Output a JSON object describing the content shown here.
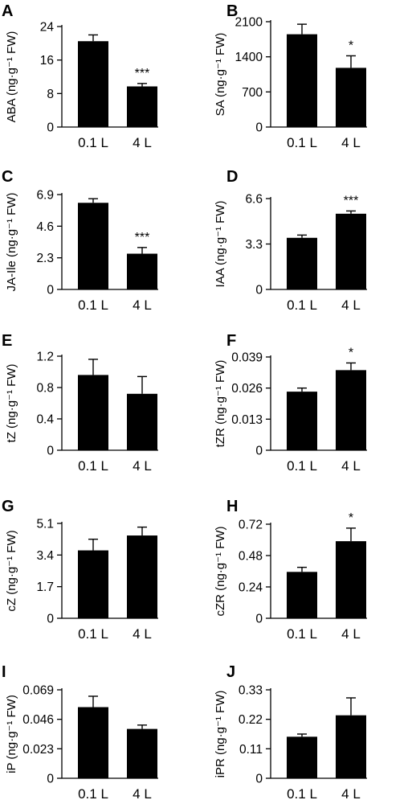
{
  "chart_data": [
    {
      "panel": "A",
      "type": "bar",
      "categories": [
        "0.1 L",
        "4 L"
      ],
      "values": [
        20.5,
        9.7
      ],
      "errors": [
        1.5,
        0.7
      ],
      "ylabel": "ABA (ng·g⁻¹ FW)",
      "yticks": [
        "0",
        "8",
        "16",
        "24"
      ],
      "ylim": [
        0,
        24
      ],
      "significance": [
        "",
        "***"
      ]
    },
    {
      "panel": "B",
      "type": "bar",
      "categories": [
        "0.1 L",
        "4 L"
      ],
      "values": [
        1850,
        1180
      ],
      "errors": [
        200,
        240
      ],
      "ylabel": "SA (ng·g⁻¹ FW)",
      "yticks": [
        "0",
        "700",
        "1400",
        "2100"
      ],
      "ylim": [
        0,
        2100
      ],
      "significance": [
        "",
        "*"
      ]
    },
    {
      "panel": "C",
      "type": "bar",
      "categories": [
        "0.1 L",
        "4 L"
      ],
      "values": [
        6.3,
        2.6
      ],
      "errors": [
        0.3,
        0.45
      ],
      "ylabel": "JA-Ile (ng·g⁻¹ FW)",
      "yticks": [
        "0",
        "2.3",
        "4.6",
        "6.9"
      ],
      "ylim": [
        0,
        6.9
      ],
      "significance": [
        "",
        "***"
      ]
    },
    {
      "panel": "D",
      "type": "bar",
      "categories": [
        "0.1 L",
        "4 L"
      ],
      "values": [
        3.75,
        5.5
      ],
      "errors": [
        0.2,
        0.2
      ],
      "ylabel": "IAA (ng·g⁻¹ FW)",
      "yticks": [
        "0",
        "3.3",
        "6.6"
      ],
      "ylim": [
        0,
        6.6
      ],
      "significance": [
        "",
        "***"
      ]
    },
    {
      "panel": "E",
      "type": "bar",
      "categories": [
        "0.1 L",
        "4 L"
      ],
      "values": [
        0.96,
        0.72
      ],
      "errors": [
        0.2,
        0.22
      ],
      "ylabel": "tZ (ng·g⁻¹ FW)",
      "yticks": [
        "0",
        "0.4",
        "0.8",
        "1.2"
      ],
      "ylim": [
        0,
        1.2
      ],
      "significance": [
        "",
        ""
      ]
    },
    {
      "panel": "F",
      "type": "bar",
      "categories": [
        "0.1 L",
        "4 L"
      ],
      "values": [
        0.0245,
        0.0335
      ],
      "errors": [
        0.0015,
        0.003
      ],
      "ylabel": "tZR (ng·g⁻¹ FW)",
      "yticks": [
        "0",
        "0.013",
        "0.026",
        "0.039"
      ],
      "ylim": [
        0,
        0.039
      ],
      "significance": [
        "",
        "*"
      ]
    },
    {
      "panel": "G",
      "type": "bar",
      "categories": [
        "0.1 L",
        "4 L"
      ],
      "values": [
        3.65,
        4.45
      ],
      "errors": [
        0.6,
        0.45
      ],
      "ylabel": "cZ (ng·g⁻¹ FW)",
      "yticks": [
        "0",
        "1.7",
        "3.4",
        "5.1"
      ],
      "ylim": [
        0,
        5.1
      ],
      "significance": [
        "",
        ""
      ]
    },
    {
      "panel": "H",
      "type": "bar",
      "categories": [
        "0.1 L",
        "4 L"
      ],
      "values": [
        0.355,
        0.59
      ],
      "errors": [
        0.035,
        0.1
      ],
      "ylabel": "cZR (ng·g⁻¹ FW)",
      "yticks": [
        "0",
        "0.24",
        "0.48",
        "0.72"
      ],
      "ylim": [
        0,
        0.72
      ],
      "significance": [
        "",
        "*"
      ]
    },
    {
      "panel": "I",
      "type": "bar",
      "categories": [
        "0.1 L",
        "4 L"
      ],
      "values": [
        0.0555,
        0.0385
      ],
      "errors": [
        0.0085,
        0.003
      ],
      "ylabel": "iP (ng·g⁻¹ FW)",
      "yticks": [
        "0",
        "0.023",
        "0.046",
        "0.069"
      ],
      "ylim": [
        0,
        0.069
      ],
      "significance": [
        "",
        ""
      ]
    },
    {
      "panel": "J",
      "type": "bar",
      "categories": [
        "0.1 L",
        "4 L"
      ],
      "values": [
        0.155,
        0.235
      ],
      "errors": [
        0.01,
        0.065
      ],
      "ylabel": "iPR (ng·g⁻¹ FW)",
      "yticks": [
        "0",
        "0.11",
        "0.22",
        "0.33"
      ],
      "ylim": [
        0,
        0.33
      ],
      "significance": [
        "",
        ""
      ]
    }
  ],
  "colors": {
    "bar": "#000000",
    "axis": "#000000",
    "background": "#ffffff"
  }
}
